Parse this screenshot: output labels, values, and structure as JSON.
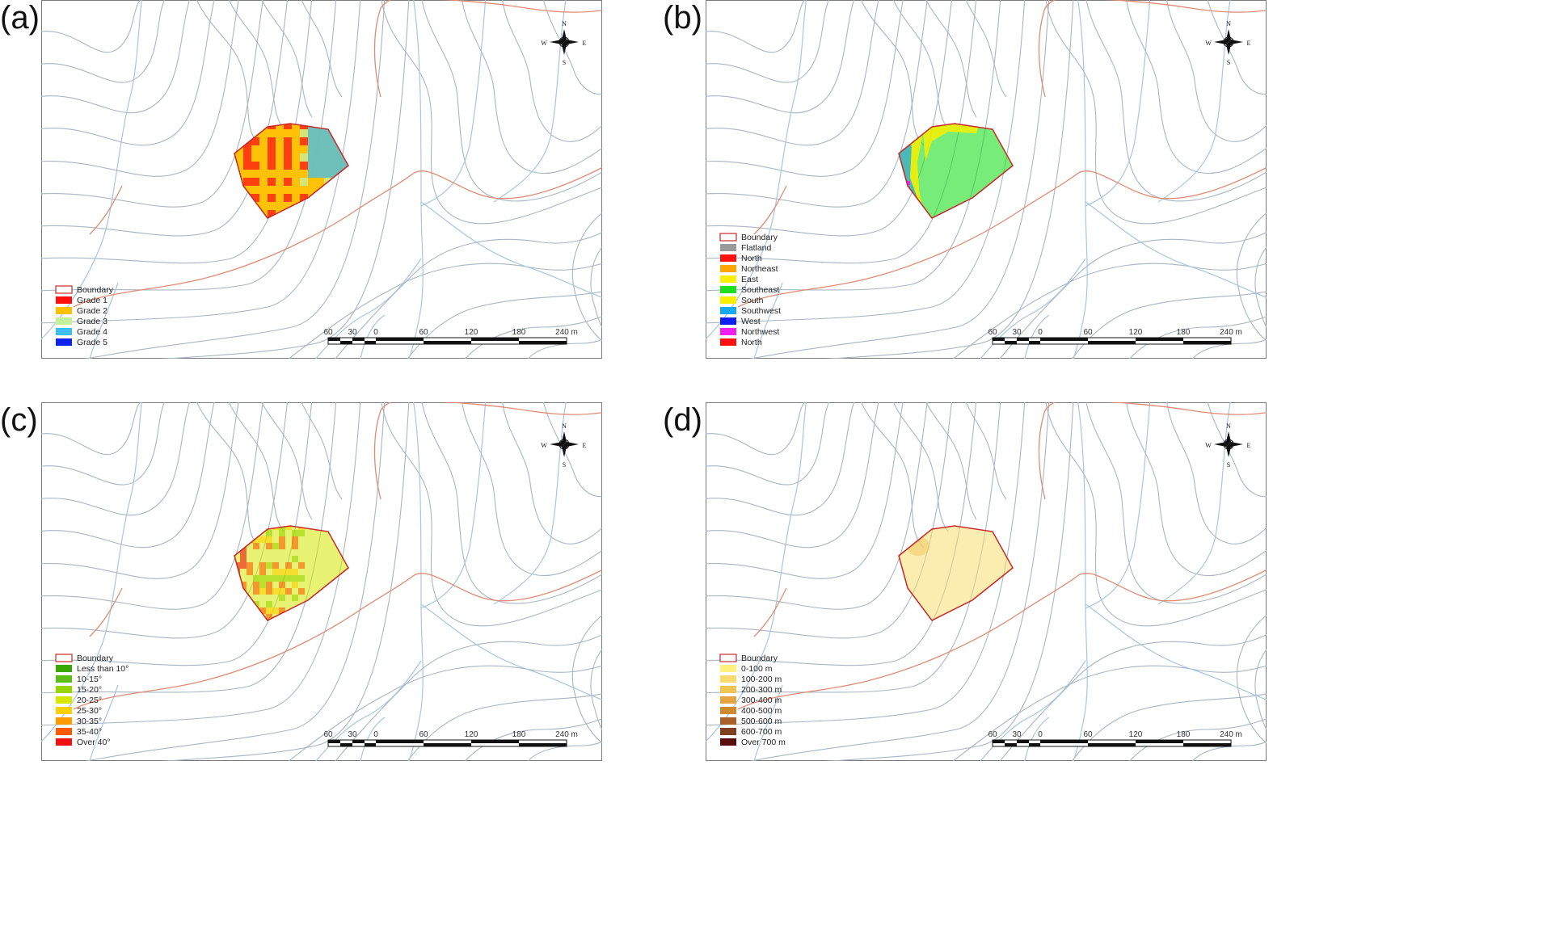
{
  "panels": [
    {
      "letter": "(a)",
      "legend": [
        {
          "label": "Boundary",
          "color": "#ffffff",
          "boundary": true
        },
        {
          "label": "Grade 1",
          "color": "#ff1010"
        },
        {
          "label": "Grade 2",
          "color": "#ffc000"
        },
        {
          "label": "Grade 3",
          "color": "#c4f09a"
        },
        {
          "label": "Grade 4",
          "color": "#3fbcf0"
        },
        {
          "label": "Grade 5",
          "color": "#1020f0"
        }
      ]
    },
    {
      "letter": "(b)",
      "legend": [
        {
          "label": "Boundary",
          "color": "#ffffff",
          "boundary": true
        },
        {
          "label": "Flatland",
          "color": "#9a9a9a"
        },
        {
          "label": "North",
          "color": "#ff1010"
        },
        {
          "label": "Northeast",
          "color": "#ffa500"
        },
        {
          "label": "East",
          "color": "#f8f000"
        },
        {
          "label": "Southeast",
          "color": "#1ee01e"
        },
        {
          "label": "South",
          "color": "#f8f000"
        },
        {
          "label": "Southwest",
          "color": "#16a8f0"
        },
        {
          "label": "West",
          "color": "#1020f0"
        },
        {
          "label": "Northwest",
          "color": "#f020f0"
        },
        {
          "label": "North",
          "color": "#ff1010"
        }
      ]
    },
    {
      "letter": "(c)",
      "legend": [
        {
          "label": "Boundary",
          "color": "#ffffff",
          "boundary": true
        },
        {
          "label": "Less than 10°",
          "color": "#38a800"
        },
        {
          "label": "10-15°",
          "color": "#5cbd14"
        },
        {
          "label": "15-20°",
          "color": "#98d400"
        },
        {
          "label": "20-25°",
          "color": "#d6e800"
        },
        {
          "label": "25-30°",
          "color": "#ffd000"
        },
        {
          "label": "30-35°",
          "color": "#ff9a00"
        },
        {
          "label": "35-40°",
          "color": "#ff5a00"
        },
        {
          "label": "Over 40°",
          "color": "#f01010"
        }
      ]
    },
    {
      "letter": "(d)",
      "legend": [
        {
          "label": "Boundary",
          "color": "#ffffff",
          "boundary": true
        },
        {
          "label": "0-100 m",
          "color": "#fff27a"
        },
        {
          "label": "100-200 m",
          "color": "#f8dc70"
        },
        {
          "label": "200-300 m",
          "color": "#f0c450"
        },
        {
          "label": "300-400 m",
          "color": "#e6a440"
        },
        {
          "label": "400-500 m",
          "color": "#cf8a30"
        },
        {
          "label": "500-600 m",
          "color": "#a86028"
        },
        {
          "label": "600-700 m",
          "color": "#80401e"
        },
        {
          "label": "Over 700 m",
          "color": "#5a0c0c"
        }
      ]
    }
  ],
  "compass": {
    "n": "N",
    "s": "S",
    "e": "E",
    "w": "W"
  },
  "scalebar": {
    "labels": [
      "60",
      "30",
      "0",
      "60",
      "120",
      "180",
      "240 m"
    ]
  },
  "colors": {
    "contour": "#a9b5c2",
    "stream": "#a6c6e0",
    "road": "#e08b72",
    "boundary": "#c82828",
    "frame": "#7a7a7a"
  }
}
